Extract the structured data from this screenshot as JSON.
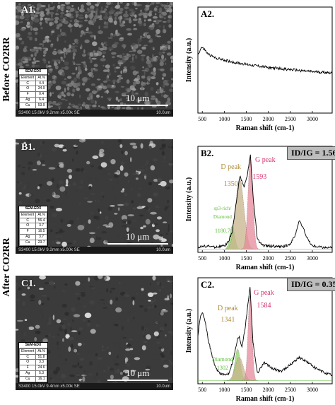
{
  "side_labels": {
    "before": "Before CO2RR",
    "after": "After CO2RR"
  },
  "panels": {
    "a1": {
      "label": "A1.",
      "edx": {
        "title": "SEM-EDX",
        "headers": [
          "Element",
          "At.%"
        ],
        "rows": [
          [
            "C",
            "4.4"
          ],
          [
            "O",
            "34.9"
          ],
          [
            "F",
            "0.4"
          ],
          [
            "Ag",
            "6.4"
          ],
          [
            "Cu",
            "53.9"
          ]
        ]
      },
      "scale": "10 μm",
      "footer": "S3400 15.0kV 9.2mm x5.00k SE",
      "footer_right": "10.0um"
    },
    "b1": {
      "label": "B1.",
      "edx": {
        "title": "SEM-EDX",
        "headers": [
          "Element",
          "At.%"
        ],
        "rows": [
          [
            "C",
            "56.4"
          ],
          [
            "O",
            "3.7"
          ],
          [
            "F",
            "16.5"
          ],
          [
            "Ag",
            "3.7"
          ],
          [
            "Cu",
            "23.7"
          ]
        ]
      },
      "scale": "10 μm",
      "footer": "S3400 15.0kV 9.2mm x5.00k SE",
      "footer_right": "10.0um"
    },
    "c1": {
      "label": "C1.",
      "edx": {
        "title": "SEM-EDX",
        "headers": [
          "Element",
          "At.%"
        ],
        "rows": [
          [
            "C",
            "51.8"
          ],
          [
            "O",
            "3.3"
          ],
          [
            "F",
            "24.6"
          ],
          [
            "Ag",
            "5.3"
          ],
          [
            "Cu",
            "16.1"
          ]
        ]
      },
      "scale": "10 μm",
      "footer": "S3400 15.0kV 9.4mm x5.00k SE",
      "footer_right": "10.0um"
    },
    "a2": {
      "label": "A2.",
      "ylabel": "Intensity (a.u.)",
      "xlabel": "Raman shift (cm-1)"
    },
    "b2": {
      "label": "B2.",
      "ylabel": "Intensity (a.u.)",
      "xlabel": "Raman shift (cm-1)",
      "ratio": "ID/IG = 1.56",
      "d_label": "D peak",
      "d_value": "1350",
      "g_label": "G peak",
      "g_value": "1593",
      "sp3_label": "sp3-rich/",
      "diamond_label": "Diamond",
      "diamond_value": "1180.7"
    },
    "c2": {
      "label": "C2.",
      "ylabel": "Intensity (a.u.)",
      "xlabel": "Raman shift (cm-1)",
      "ratio": "ID/IG = 0.35",
      "d_label": "D peak",
      "d_value": "1341",
      "g_label": "G peak",
      "g_value": "1584",
      "diamond_label": "Diamond",
      "diamond_value": "1302"
    }
  },
  "colors": {
    "d_peak": "#b08c3c",
    "g_peak": "#d9336f",
    "diamond": "#5cbf3a",
    "d_fill": "#c9b48c",
    "g_fill": "#e8899a",
    "diamond_fill": "#8fd16a"
  },
  "chart_data": [
    {
      "type": "line",
      "id": "A2",
      "xlabel": "Raman shift (cm-1)",
      "ylabel": "Intensity (a.u.)",
      "xlim": [
        400,
        3450
      ],
      "xticks": [
        500,
        1000,
        1500,
        2000,
        2500,
        3000
      ],
      "series": [
        {
          "x": [
            400,
            480,
            550,
            620,
            700,
            800,
            1000,
            1200,
            1500,
            2000,
            2500,
            3000,
            3450
          ],
          "y": [
            0.55,
            0.62,
            0.6,
            0.56,
            0.54,
            0.52,
            0.5,
            0.48,
            0.46,
            0.43,
            0.41,
            0.39,
            0.38
          ]
        }
      ]
    },
    {
      "type": "line",
      "id": "B2",
      "xlabel": "Raman shift (cm-1)",
      "ylabel": "Intensity (a.u.)",
      "xlim": [
        400,
        3450
      ],
      "xticks": [
        500,
        1000,
        1500,
        2000,
        2500,
        3000
      ],
      "series": [
        {
          "x": [
            400,
            600,
            800,
            1000,
            1100,
            1180,
            1250,
            1350,
            1450,
            1520,
            1593,
            1650,
            1750,
            1900,
            2100,
            2300,
            2500,
            2600,
            2700,
            2800,
            2900,
            3000,
            3200,
            3450
          ],
          "y": [
            0.05,
            0.06,
            0.05,
            0.06,
            0.1,
            0.2,
            0.4,
            0.72,
            0.62,
            0.72,
            0.92,
            0.55,
            0.12,
            0.06,
            0.06,
            0.05,
            0.08,
            0.15,
            0.3,
            0.22,
            0.12,
            0.06,
            0.05,
            0.04
          ]
        }
      ],
      "peaks": [
        {
          "name": "sp3-rich/Diamond",
          "center": 1180.7,
          "height": 0.22,
          "width": 55
        },
        {
          "name": "D peak",
          "center": 1350,
          "height": 0.66,
          "width": 95
        },
        {
          "name": "G peak",
          "center": 1593,
          "height": 0.86,
          "width": 55
        }
      ]
    },
    {
      "type": "line",
      "id": "C2",
      "xlabel": "Raman shift (cm-1)",
      "ylabel": "Intensity (a.u.)",
      "xlim": [
        400,
        3450
      ],
      "xticks": [
        500,
        1000,
        1500,
        2000,
        2500,
        3000
      ],
      "series": [
        {
          "x": [
            400,
            450,
            500,
            560,
            620,
            700,
            800,
            900,
            1000,
            1100,
            1200,
            1300,
            1341,
            1400,
            1480,
            1584,
            1650,
            1750,
            1900,
            2100,
            2300,
            2500,
            2700,
            2900,
            3100,
            3300,
            3450
          ],
          "y": [
            0.45,
            0.62,
            0.68,
            0.6,
            0.45,
            0.3,
            0.15,
            0.1,
            0.08,
            0.1,
            0.22,
            0.42,
            0.44,
            0.35,
            0.55,
            0.92,
            0.4,
            0.1,
            0.2,
            0.14,
            0.12,
            0.18,
            0.25,
            0.2,
            0.14,
            0.1,
            0.08
          ]
        }
      ],
      "peaks": [
        {
          "name": "Diamond",
          "center": 1302,
          "height": 0.3,
          "width": 60
        },
        {
          "name": "D peak",
          "center": 1341,
          "height": 0.22,
          "width": 90
        },
        {
          "name": "G peak",
          "center": 1584,
          "height": 0.8,
          "width": 45
        }
      ]
    }
  ]
}
